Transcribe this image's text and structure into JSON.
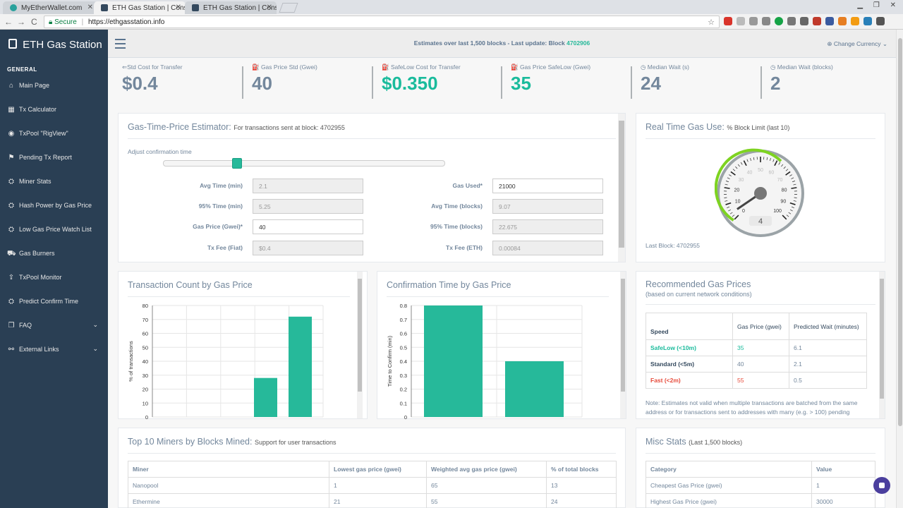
{
  "browser": {
    "tabs": [
      {
        "title": "MyEtherWallet.com",
        "close": "✕",
        "color": "#29a19c"
      },
      {
        "title": "ETH Gas Station | Consu",
        "close": "✕",
        "color": "#34495e"
      },
      {
        "title": "ETH Gas Station | Consu",
        "close": "✕",
        "color": "#34495e"
      }
    ],
    "nav": {
      "back": "←",
      "forward": "→",
      "reload": "C"
    },
    "secure_label": "Secure",
    "url": "https://ethgasstation.info",
    "star": "☆"
  },
  "sidebar": {
    "brand": "ETH Gas Station",
    "section": "GENERAL",
    "items": [
      {
        "label": "Main Page",
        "icon": "⌂"
      },
      {
        "label": "Tx Calculator",
        "icon": "▦"
      },
      {
        "label": "TxPool \"RigView\"",
        "icon": "◉"
      },
      {
        "label": "Pending Tx Report",
        "icon": "⚑"
      },
      {
        "label": "Miner Stats",
        "icon": "⛭"
      },
      {
        "label": "Hash Power by Gas Price",
        "icon": "⛭"
      },
      {
        "label": "Low Gas Price Watch List",
        "icon": "⛭"
      },
      {
        "label": "Gas Burners",
        "icon": "⛟"
      },
      {
        "label": "TxPool Monitor",
        "icon": "⇪"
      },
      {
        "label": "Predict Confirm Time",
        "icon": "⛭"
      },
      {
        "label": "FAQ",
        "icon": "❐",
        "caret": "⌄"
      },
      {
        "label": "External Links",
        "icon": "⚯",
        "caret": "⌄"
      }
    ]
  },
  "header": {
    "estimates_prefix": "Estimates over last 1,500 blocks - Last update: Block ",
    "block": "4702906",
    "currency": "⊕ Change Currency ⌄"
  },
  "tiles": [
    {
      "label": "⇐Std Cost for Transfer",
      "value": "$0.4",
      "green": false
    },
    {
      "label": "⛽ Gas Price Std (Gwei)",
      "value": "40",
      "green": false
    },
    {
      "label": "⛽ SafeLow Cost for Transfer",
      "value": "$0.350",
      "green": true
    },
    {
      "label": "⛽ Gas Price SafeLow (Gwei)",
      "value": "35",
      "green": true
    },
    {
      "label": "◷ Median Wait (s)",
      "value": "24",
      "green": false
    },
    {
      "label": "◷ Median Wait (blocks)",
      "value": "2",
      "green": false
    }
  ],
  "estimator": {
    "title": "Gas-Time-Price Estimator: ",
    "subtitle": "For transactions sent at block: 4702955",
    "slider_label": "Adjust confirmation time",
    "slider_level": 0.26,
    "left_fields": [
      {
        "label": "Avg Time (min)",
        "value": "2.1",
        "editable": false
      },
      {
        "label": "95% Time (min)",
        "value": "5.25",
        "editable": false
      },
      {
        "label": "Gas Price (Gwei)*",
        "value": "40",
        "editable": true
      },
      {
        "label": "Tx Fee (Fiat)",
        "value": "$0.4",
        "editable": false
      }
    ],
    "right_fields": [
      {
        "label": "Gas Used*",
        "value": "21000",
        "editable": true
      },
      {
        "label": "Avg Time (blocks)",
        "value": "9.07",
        "editable": false
      },
      {
        "label": "95% Time (blocks)",
        "value": "22.675",
        "editable": false
      },
      {
        "label": "Tx Fee (ETH)",
        "value": "0.00084",
        "editable": false
      }
    ]
  },
  "gas_use": {
    "title": "Real Time Gas Use: ",
    "subtitle": "% Block Limit (last 10)",
    "ticks": [
      "0",
      "10",
      "20",
      "30",
      "40",
      "50",
      "60",
      "70",
      "80",
      "90",
      "100"
    ],
    "reading": "4",
    "value": 4,
    "last_block": "Last Block: 4702955"
  },
  "tx_count": {
    "title": "Transaction Count by Gas Price",
    "ylabel": "% of transactions"
  },
  "confirm_time": {
    "title": "Confirmation Time by Gas Price",
    "ylabel": "Time to Confirm (min)"
  },
  "chart_data": [
    {
      "type": "bar",
      "title": "Transaction Count by Gas Price",
      "xlabel": "",
      "ylabel": "% of transactions",
      "ylim": [
        0,
        80
      ],
      "yticks": [
        "0",
        "10",
        "20",
        "30",
        "40",
        "50",
        "60",
        "70",
        "80"
      ],
      "values": [
        0,
        0,
        0,
        28,
        72
      ],
      "grid": true
    },
    {
      "type": "bar",
      "title": "Confirmation Time by Gas Price",
      "xlabel": "",
      "ylabel": "Time to Confirm (min)",
      "ylim": [
        0,
        0.8
      ],
      "yticks": [
        "0",
        "0.1",
        "0.2",
        "0.3",
        "0.4",
        "0.5",
        "0.6",
        "0.7",
        "0.8"
      ],
      "values": [
        0.8,
        0.4
      ],
      "grid": true
    }
  ],
  "recommended": {
    "title": "Recommended Gas Prices",
    "subtitle": "(based on current network conditions)",
    "headers": [
      "Speed",
      "Gas Price (gwei)",
      "Predicted Wait (minutes)"
    ],
    "rows": [
      {
        "speed": "SafeLow (<10m)",
        "price": "35",
        "wait": "6.1",
        "cls": "safe"
      },
      {
        "speed": "Standard (<5m)",
        "price": "40",
        "wait": "2.1",
        "cls": "std"
      },
      {
        "speed": "Fast (<2m)",
        "price": "55",
        "wait": "0.5",
        "cls": "fast"
      }
    ],
    "note": "Note: Estimates not valid when multiple transactions are batched from the same address or for transactions sent to addresses with many (e.g. > 100) pending transactions"
  },
  "miners": {
    "title": "Top 10 Miners by Blocks Mined: ",
    "subtitle": "Support for user transactions",
    "headers": [
      "Miner",
      "Lowest gas price (gwei)",
      "Weighted avg gas price (gwei)",
      "% of total blocks"
    ],
    "rows": [
      [
        "Nanopool",
        "1",
        "65",
        "13"
      ],
      [
        "Ethermine",
        "21",
        "55",
        "24"
      ]
    ]
  },
  "misc": {
    "title": "Misc Stats ",
    "subtitle": "(Last 1,500 blocks)",
    "headers": [
      "Category",
      "Value"
    ],
    "rows": [
      [
        "Cheapest Gas Price (gwei)",
        "1"
      ],
      [
        "Highest Gas Price (gwei)",
        "30000"
      ]
    ]
  },
  "colors": {
    "accent": "#26b99a",
    "sidebar": "#2a3f54",
    "muted": "#73879c",
    "fast": "#e74c3c"
  }
}
